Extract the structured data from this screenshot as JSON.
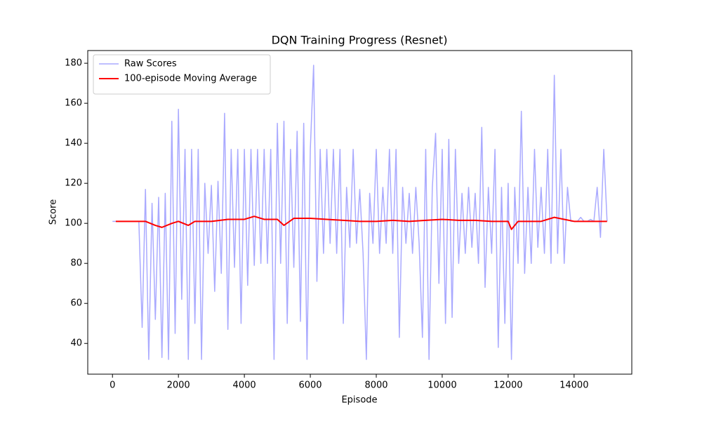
{
  "chart_data": {
    "type": "line",
    "title": "DQN Training Progress (Resnet)",
    "x_label": "Episode",
    "y_label": "Score",
    "xlim": [
      -750,
      15750
    ],
    "ylim": [
      24.65,
      186.35
    ],
    "xticks": [
      0,
      2000,
      4000,
      6000,
      8000,
      10000,
      12000,
      14000
    ],
    "yticks": [
      40,
      60,
      80,
      100,
      120,
      140,
      160,
      180
    ],
    "legend": "upper left",
    "series": [
      {
        "name": "Raw Scores",
        "color": "#aaaaff",
        "width": 1.5,
        "x": [
          0,
          100,
          200,
          300,
          400,
          500,
          600,
          700,
          800,
          900,
          1000,
          1100,
          1200,
          1300,
          1400,
          1500,
          1600,
          1700,
          1800,
          1900,
          2000,
          2100,
          2200,
          2300,
          2400,
          2500,
          2600,
          2700,
          2800,
          2900,
          3000,
          3100,
          3200,
          3300,
          3400,
          3500,
          3600,
          3700,
          3800,
          3900,
          4000,
          4100,
          4200,
          4300,
          4400,
          4500,
          4600,
          4700,
          4800,
          4900,
          5000,
          5100,
          5200,
          5300,
          5400,
          5500,
          5600,
          5700,
          5800,
          5900,
          6000,
          6100,
          6200,
          6300,
          6400,
          6500,
          6600,
          6700,
          6800,
          6900,
          7000,
          7100,
          7200,
          7300,
          7400,
          7500,
          7600,
          7700,
          7800,
          7900,
          8000,
          8100,
          8200,
          8300,
          8400,
          8500,
          8600,
          8700,
          8800,
          8900,
          9000,
          9100,
          9200,
          9300,
          9400,
          9500,
          9600,
          9700,
          9800,
          9900,
          10000,
          10100,
          10200,
          10300,
          10400,
          10500,
          10600,
          10700,
          10800,
          10900,
          11000,
          11100,
          11200,
          11300,
          11400,
          11500,
          11600,
          11700,
          11800,
          11900,
          12000,
          12100,
          12200,
          12300,
          12400,
          12500,
          12600,
          12700,
          12800,
          12900,
          13000,
          13100,
          13200,
          13300,
          13400,
          13500,
          13600,
          13700,
          13800,
          13900,
          14000,
          14100,
          14200,
          14300,
          14400,
          14500,
          14600,
          14700,
          14800,
          14900,
          15000
        ],
        "values": [
          101,
          101,
          101,
          101,
          101,
          101,
          101,
          101,
          101,
          48,
          117,
          32,
          110,
          52,
          113,
          33,
          115,
          32,
          151,
          45,
          157,
          62,
          137,
          32,
          137,
          50,
          137,
          32,
          120,
          85,
          119,
          66,
          121,
          75,
          155,
          47,
          137,
          78,
          137,
          50,
          137,
          69,
          137,
          79,
          137,
          80,
          137,
          80,
          137,
          32,
          150,
          80,
          151,
          50,
          137,
          78,
          146,
          51,
          150,
          32,
          137,
          179,
          71,
          137,
          85,
          137,
          90,
          137,
          85,
          137,
          50,
          118,
          88,
          137,
          90,
          117,
          85,
          32,
          115,
          90,
          137,
          85,
          118,
          90,
          137,
          85,
          137,
          43,
          118,
          90,
          115,
          85,
          118,
          90,
          43,
          137,
          32,
          118,
          145,
          70,
          137,
          50,
          142,
          53,
          137,
          80,
          115,
          85,
          118,
          88,
          115,
          80,
          148,
          68,
          118,
          85,
          137,
          38,
          118,
          50,
          120,
          32,
          118,
          80,
          156,
          75,
          118,
          80,
          137,
          88,
          118,
          85,
          137,
          80,
          174,
          85,
          137,
          80,
          118,
          101,
          101,
          101,
          103,
          101,
          101,
          102,
          101,
          118,
          93,
          137,
          101
        ]
      },
      {
        "name": "100-episode Moving Average",
        "color": "#ff0000",
        "width": 2,
        "x": [
          100,
          500,
          1000,
          1300,
          1500,
          1800,
          2000,
          2300,
          2500,
          3000,
          3500,
          4000,
          4300,
          4600,
          5000,
          5200,
          5500,
          6000,
          6500,
          7000,
          7500,
          8000,
          8500,
          9000,
          9500,
          10000,
          10500,
          11000,
          11500,
          11800,
          12000,
          12100,
          12300,
          12500,
          13000,
          13400,
          13700,
          14000,
          14500,
          15000
        ],
        "values": [
          101,
          101,
          101,
          99,
          98,
          100,
          101,
          99,
          101,
          101,
          102,
          102,
          103.5,
          102,
          102,
          99,
          102.5,
          102.5,
          102,
          101.5,
          101,
          101,
          101.5,
          101,
          101.5,
          102,
          101.5,
          101.5,
          101,
          101,
          101,
          97,
          101,
          101,
          101,
          103,
          102,
          101,
          101,
          101
        ]
      }
    ]
  }
}
